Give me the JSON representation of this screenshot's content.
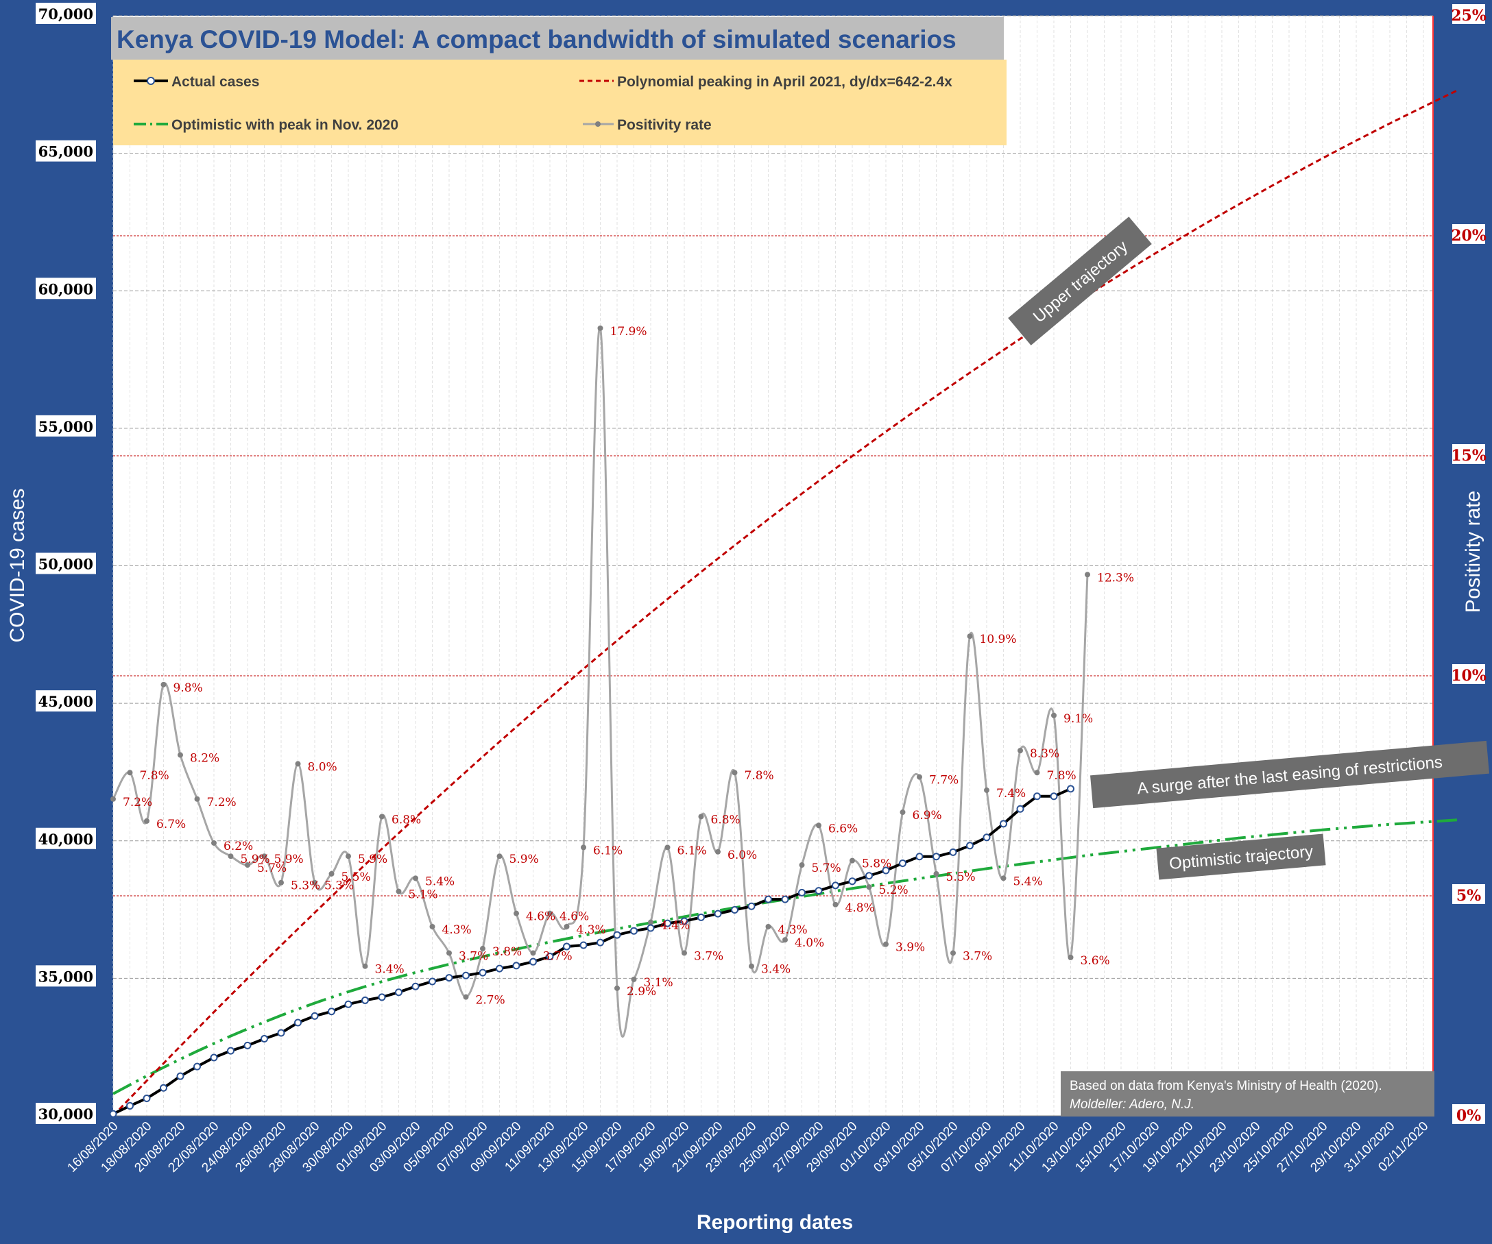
{
  "chart_data": {
    "type": "line",
    "title": "Kenya COVID-19 Model: A compact bandwidth of simulated scenarios",
    "xlabel": "Reporting dates",
    "ylabel": "COVID-19 cases",
    "y2label": "Positivity rate",
    "ylim": [
      30000,
      70000
    ],
    "y2lim": [
      0,
      25
    ],
    "grid": true,
    "legend_position": "top-left",
    "x_ticks": [
      "16/08/2020",
      "18/08/2020",
      "20/08/2020",
      "22/08/2020",
      "24/08/2020",
      "26/08/2020",
      "28/08/2020",
      "30/08/2020",
      "01/09/2020",
      "03/09/2020",
      "05/09/2020",
      "07/09/2020",
      "09/09/2020",
      "11/09/2020",
      "13/09/2020",
      "15/09/2020",
      "17/09/2020",
      "19/09/2020",
      "21/09/2020",
      "23/09/2020",
      "25/09/2020",
      "27/09/2020",
      "29/09/2020",
      "01/10/2020",
      "03/10/2020",
      "05/10/2020",
      "07/10/2020",
      "09/10/2020",
      "11/10/2020",
      "13/10/2020",
      "15/10/2020",
      "17/10/2020",
      "19/10/2020",
      "21/10/2020",
      "23/10/2020",
      "25/10/2020",
      "27/10/2020",
      "29/10/2020",
      "31/10/2020",
      "02/11/2020"
    ],
    "y_ticks": [
      "30,000",
      "35,000",
      "40,000",
      "45,000",
      "50,000",
      "55,000",
      "60,000",
      "65,000",
      "70,000"
    ],
    "y2_ticks": [
      "0%",
      "5%",
      "10%",
      "15%",
      "20%",
      "25%"
    ],
    "legend": [
      {
        "label": "Actual cases",
        "color": "#000000",
        "style": "solid-markers"
      },
      {
        "label": "Polynomial peaking in April 2021, dy/dx=642-2.4x",
        "color": "#c00000",
        "style": "dashed"
      },
      {
        "label": "Optimistic with peak in Nov. 2020",
        "color": "#1faa3c",
        "style": "dash-dot"
      },
      {
        "label": "Positivity rate",
        "color": "#a6a6a6",
        "style": "line-markers"
      }
    ],
    "series": [
      {
        "name": "Actual cases",
        "color": "#000000",
        "start_index": 0,
        "values": [
          30071,
          30363,
          30636,
          31015,
          31441,
          31792,
          32118,
          32364,
          32557,
          32803,
          33016,
          33389,
          33630,
          33794,
          34057,
          34201,
          34315,
          34493,
          34705,
          34884,
          35020,
          35103,
          35205,
          35356,
          35460,
          35603,
          35793,
          36157,
          36205,
          36301,
          36576,
          36724,
          36829,
          37000,
          37079,
          37218,
          37348,
          37489,
          37620,
          37872,
          37872,
          38115,
          38185,
          38378,
          38529,
          38730,
          38923,
          39184,
          39427,
          39427,
          39586,
          39824,
          40125,
          40620,
          41158,
          41619,
          41619,
          41890
        ]
      },
      {
        "name": "Polynomial peaking in April 2021, dy/dx=642-2.4x",
        "color": "#c00000",
        "start_index": 0,
        "values": [
          30000,
          30640,
          31275,
          31906,
          32533,
          33155,
          33773,
          34386,
          34995,
          35600,
          36200,
          36796,
          37387,
          37974,
          38557,
          39135,
          39709,
          40278,
          40843,
          41404,
          41960,
          42512,
          43059,
          43602,
          44141,
          44675,
          45205,
          45730,
          46251,
          46768,
          47280,
          47788,
          48291,
          48790,
          49285,
          49775,
          50261,
          50742,
          51219,
          51692,
          52160,
          52624,
          53083,
          53538,
          53989,
          54435,
          54877,
          55314,
          55747,
          56176,
          56600,
          57020,
          57435,
          57846,
          58253,
          58655,
          59053,
          59446,
          59835,
          60220,
          60600,
          60976,
          61347,
          61714,
          62077,
          62435,
          62789,
          63138,
          63483,
          63824,
          64160,
          64492,
          64819,
          65142,
          65461,
          65775,
          66085,
          66390,
          66691,
          66988,
          67280
        ]
      },
      {
        "name": "Optimistic with peak in Nov. 2020",
        "color": "#1faa3c",
        "start_index": 0,
        "values": [
          30800,
          31130,
          31450,
          31760,
          32060,
          32350,
          32630,
          32900,
          33160,
          33410,
          33650,
          33880,
          34100,
          34310,
          34510,
          34700,
          34880,
          35050,
          35210,
          35360,
          35510,
          35650,
          35790,
          35930,
          36060,
          36190,
          36320,
          36440,
          36560,
          36680,
          36800,
          36910,
          37020,
          37130,
          37240,
          37350,
          37460,
          37570,
          37670,
          37770,
          37870,
          37970,
          38070,
          38170,
          38270,
          38360,
          38450,
          38540,
          38630,
          38720,
          38810,
          38900,
          38990,
          39070,
          39150,
          39230,
          39310,
          39390,
          39470,
          39540,
          39610,
          39680,
          39750,
          39820,
          39890,
          39960,
          40030,
          40100,
          40160,
          40220,
          40280,
          40340,
          40400,
          40450,
          40500,
          40550,
          40600,
          40640,
          40680,
          40720,
          40760
        ]
      },
      {
        "name": "Positivity rate",
        "color": "#a6a6a6",
        "axis": "right",
        "start_index": 0,
        "values": [
          7.2,
          7.8,
          6.7,
          9.8,
          8.2,
          7.2,
          6.2,
          5.9,
          5.7,
          5.9,
          5.3,
          8.0,
          5.3,
          5.5,
          5.9,
          3.4,
          6.8,
          5.1,
          5.4,
          4.3,
          3.7,
          2.7,
          3.8,
          5.9,
          4.6,
          3.7,
          4.6,
          4.3,
          6.1,
          17.9,
          2.9,
          3.1,
          4.4,
          6.1,
          3.7,
          6.8,
          6.0,
          7.8,
          3.4,
          4.3,
          4.0,
          5.7,
          6.6,
          4.8,
          5.8,
          5.2,
          3.9,
          6.9,
          7.7,
          5.5,
          3.7,
          10.9,
          7.4,
          5.4,
          8.3,
          7.8,
          9.1,
          3.6,
          12.3
        ]
      }
    ],
    "annotations": {
      "upper": "Upper trajectory",
      "surge": "A surge after the last easing of restrictions",
      "optimistic": "Optimistic trajectory",
      "source_line1": "Based on data from Kenya's Ministry of Health (2020).",
      "source_line2": "Moldeller: Adero, N.J."
    },
    "colors": {
      "background": "#2b5294",
      "title_box": "#bdbdbd",
      "title_text": "#2b5294",
      "legend_box": "#ffe199",
      "value_label": "#c00000",
      "annotation_box": "#6d6d6d"
    }
  }
}
